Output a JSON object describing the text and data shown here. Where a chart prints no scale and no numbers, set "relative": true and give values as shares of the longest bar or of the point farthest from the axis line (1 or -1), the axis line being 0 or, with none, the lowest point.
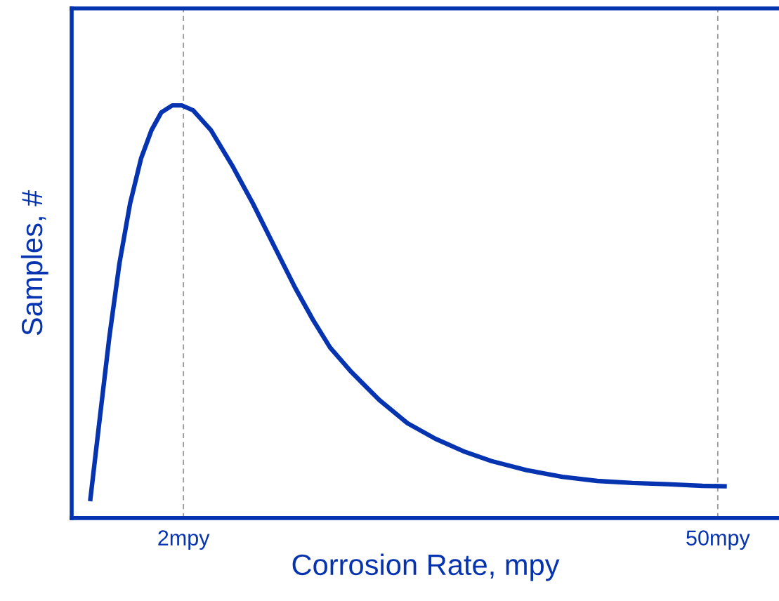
{
  "chart_data": {
    "type": "line",
    "xlabel": "Corrosion Rate, mpy",
    "ylabel": "Samples, #",
    "relative": true,
    "log": "x",
    "xlim": [
      1.02,
      72.3
    ],
    "xticks": [
      {
        "value": 2,
        "label": "2mpy"
      },
      {
        "value": 50,
        "label": "50mpy"
      }
    ],
    "tick_labels": "x",
    "grid": "x",
    "legend": false,
    "marker": "none",
    "line_style": "solid",
    "x": [
      1.14,
      1.2,
      1.28,
      1.36,
      1.45,
      1.55,
      1.65,
      1.75,
      1.87,
      1.98,
      2.12,
      2.36,
      2.68,
      3.04,
      3.45,
      3.92,
      4.36,
      4.84,
      5.5,
      6.51,
      7.71,
      9.13,
      10.8,
      12.8,
      15.8,
      19.6,
      24.2,
      29.9,
      36.9,
      45.6,
      52.8
    ],
    "series": [
      {
        "color": "#0633b0",
        "values": [
          0.041,
          0.218,
          0.439,
          0.617,
          0.762,
          0.872,
          0.94,
          0.983,
          1.0,
          1.0,
          0.988,
          0.94,
          0.855,
          0.762,
          0.66,
          0.558,
          0.481,
          0.413,
          0.354,
          0.286,
          0.23,
          0.192,
          0.162,
          0.138,
          0.116,
          0.1,
          0.09,
          0.085,
          0.082,
          0.078,
          0.077
        ]
      }
    ]
  }
}
